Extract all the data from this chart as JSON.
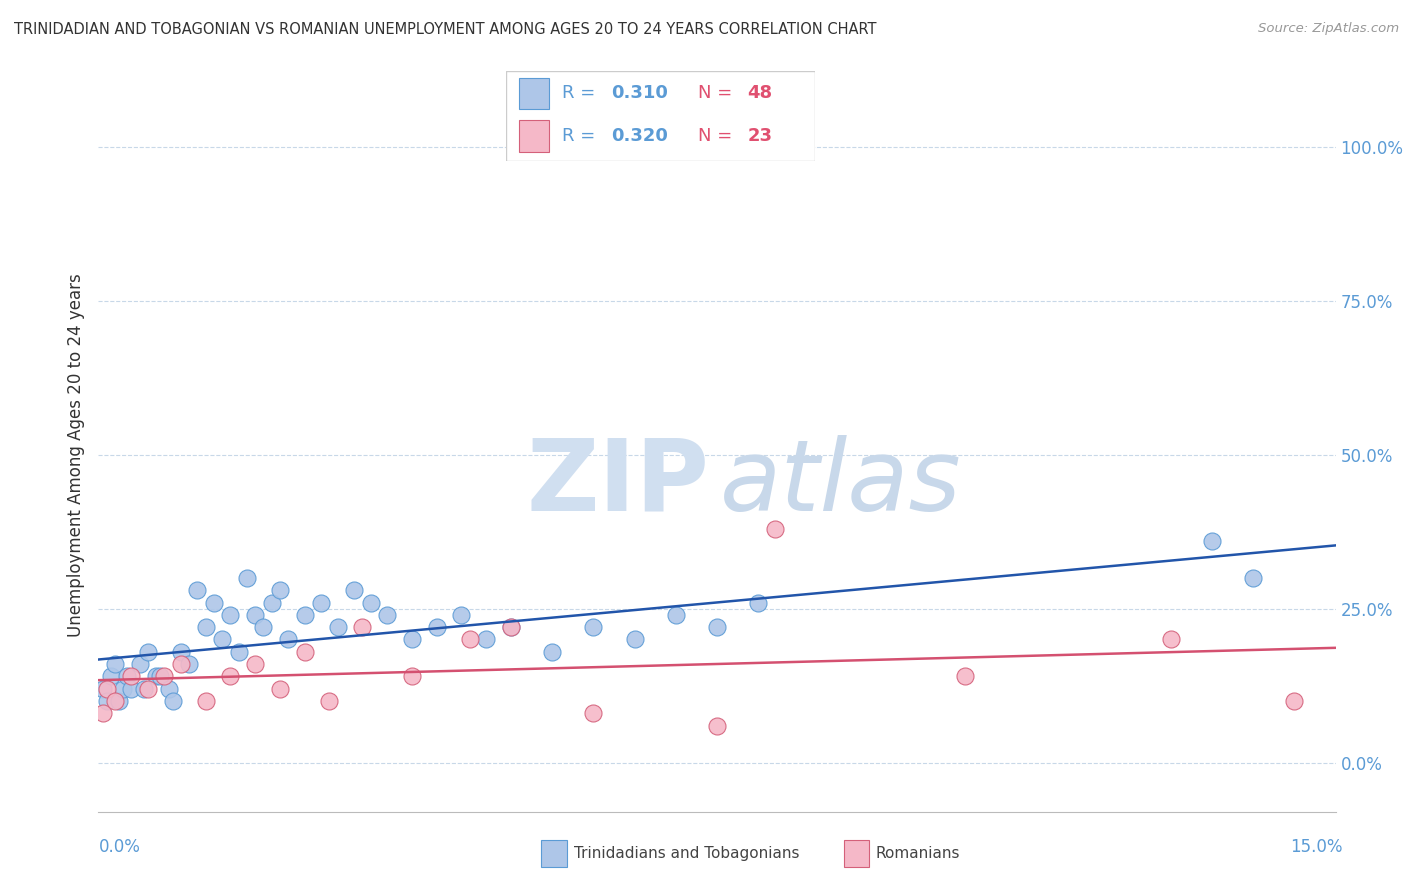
{
  "title": "TRINIDADIAN AND TOBAGONIAN VS ROMANIAN UNEMPLOYMENT AMONG AGES 20 TO 24 YEARS CORRELATION CHART",
  "source": "Source: ZipAtlas.com",
  "ylabel": "Unemployment Among Ages 20 to 24 years",
  "xlim": [
    0.0,
    15.0
  ],
  "ylim": [
    -8.0,
    108.0
  ],
  "yticks": [
    0,
    25,
    50,
    75,
    100
  ],
  "ytick_labels": [
    "0.0%",
    "25.0%",
    "50.0%",
    "75.0%",
    "100.0%"
  ],
  "series1_color": "#aec6e8",
  "series1_edge": "#5b9bd5",
  "series2_color": "#f5b8c8",
  "series2_edge": "#d4607a",
  "line1_color": "#2255aa",
  "line2_color": "#d45070",
  "watermark_zip_color": "#d0dff0",
  "watermark_atlas_color": "#c8d8ea",
  "background_color": "#ffffff",
  "grid_color": "#c8d8e8",
  "title_color": "#333333",
  "source_color": "#999999",
  "ytick_color": "#5b9bd5",
  "xlabel_color": "#5b9bd5",
  "legend_text_color_r": "#5b9bd5",
  "legend_text_color_n": "#e05070",
  "legend_border_color": "#cccccc"
}
